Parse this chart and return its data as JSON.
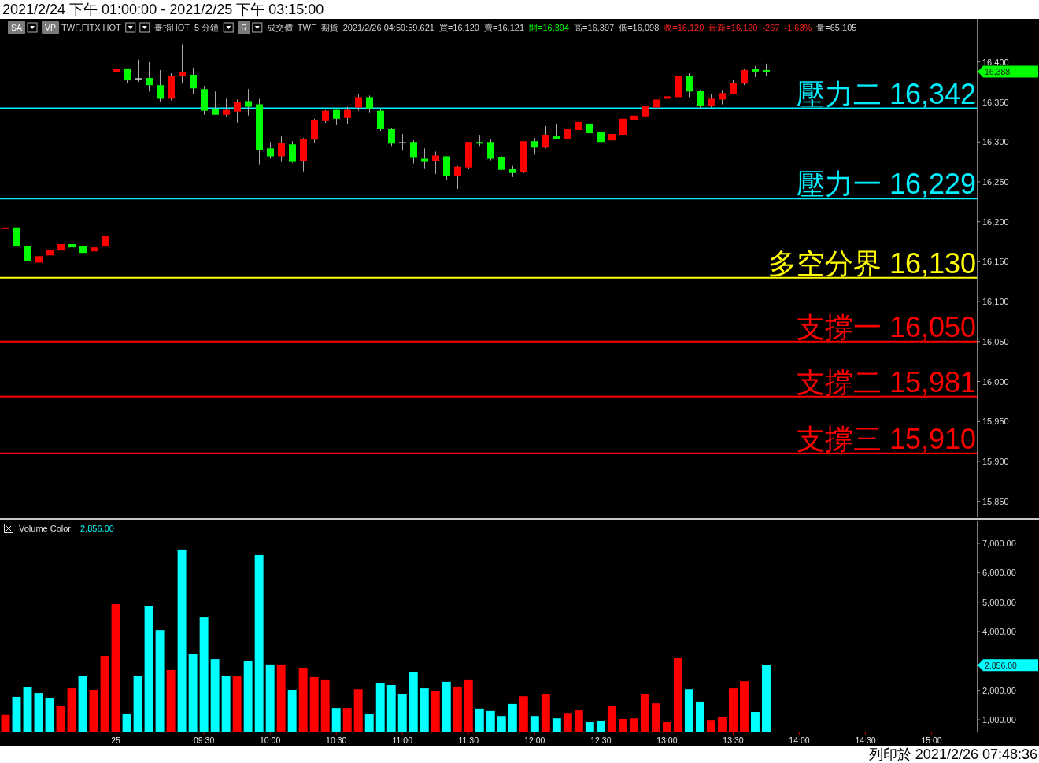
{
  "chart_data": [
    {
      "type": "candlestick",
      "title": "2021/2/24 下午 01:00:00 - 2021/2/25 下午 03:15:00",
      "categories": [
        null,
        null,
        null,
        null,
        null,
        null,
        null,
        null,
        null,
        null,
        null,
        null,
        null,
        null,
        null,
        null,
        null,
        null,
        null,
        null,
        null,
        null,
        null,
        null,
        null,
        null,
        null,
        null,
        null,
        null,
        null,
        null,
        null,
        null,
        null,
        null,
        null,
        null,
        null,
        null,
        null,
        null,
        null,
        null,
        null,
        null,
        null,
        null,
        null,
        null,
        null,
        null,
        null,
        null,
        null,
        null,
        null,
        null,
        null,
        null,
        null,
        null,
        null,
        null,
        null,
        null,
        null,
        null,
        null,
        null,
        null,
        null,
        null,
        null,
        null,
        null,
        null,
        null,
        null,
        null,
        null,
        null,
        null,
        null,
        null,
        null,
        null,
        null
      ],
      "ohlc": [
        [
          16191,
          16202,
          16171,
          16193
        ],
        [
          16193,
          16201,
          16165,
          16169
        ],
        [
          16170,
          16172,
          16146,
          16151
        ],
        [
          16149,
          16171,
          16141,
          16157
        ],
        [
          16158,
          16183,
          16151,
          16165
        ],
        [
          16164,
          16176,
          16157,
          16172
        ],
        [
          16172,
          16180,
          16147,
          16168
        ],
        [
          16170,
          16180,
          16156,
          16161
        ],
        [
          16163,
          16174,
          16155,
          16168
        ],
        [
          16169,
          16185,
          16161,
          16182
        ],
        [
          16387,
          16400,
          16373,
          16391
        ],
        [
          16392,
          16392,
          16374,
          16377
        ],
        [
          16379,
          16403,
          16375,
          16379
        ],
        [
          16380,
          16400,
          16363,
          16371
        ],
        [
          16371,
          16390,
          16350,
          16354
        ],
        [
          16354,
          16386,
          16352,
          16383
        ],
        [
          16382,
          16422,
          16373,
          16387
        ],
        [
          16384,
          16393,
          16360,
          16367
        ],
        [
          16366,
          16370,
          16334,
          16339
        ],
        [
          16341,
          16363,
          16334,
          16334
        ],
        [
          16334,
          16354,
          16332,
          16340
        ],
        [
          16338,
          16353,
          16324,
          16350
        ],
        [
          16351,
          16366,
          16333,
          16344
        ],
        [
          16347,
          16354,
          16272,
          16290
        ],
        [
          16292,
          16300,
          16279,
          16282
        ],
        [
          16282,
          16307,
          16275,
          16299
        ],
        [
          16297,
          16301,
          16274,
          16275
        ],
        [
          16276,
          16305,
          16263,
          16304
        ],
        [
          16303,
          16329,
          16299,
          16327
        ],
        [
          16326,
          16340,
          16324,
          16339
        ],
        [
          16340,
          16340,
          16321,
          16329
        ],
        [
          16330,
          16344,
          16322,
          16340
        ],
        [
          16343,
          16360,
          16339,
          16356
        ],
        [
          16356,
          16358,
          16337,
          16342
        ],
        [
          16339,
          16341,
          16313,
          16316
        ],
        [
          16316,
          16318,
          16294,
          16298
        ],
        [
          16299,
          16310,
          16289,
          16299
        ],
        [
          16300,
          16302,
          16273,
          16280
        ],
        [
          16279,
          16292,
          16267,
          16275
        ],
        [
          16276,
          16288,
          16260,
          16283
        ],
        [
          16282,
          16282,
          16253,
          16257
        ],
        [
          16257,
          16270,
          16241,
          16269
        ],
        [
          16268,
          16300,
          16266,
          16300
        ],
        [
          16300,
          16308,
          16294,
          16298
        ],
        [
          16300,
          16303,
          16277,
          16279
        ],
        [
          16281,
          16282,
          16265,
          16265
        ],
        [
          16266,
          16270,
          16256,
          16261
        ],
        [
          16262,
          16301,
          16261,
          16301
        ],
        [
          16301,
          16305,
          16284,
          16293
        ],
        [
          16293,
          16320,
          16292,
          16309
        ],
        [
          16307,
          16323,
          16304,
          16304
        ],
        [
          16304,
          16320,
          16290,
          16316
        ],
        [
          16315,
          16328,
          16311,
          16325
        ],
        [
          16323,
          16325,
          16306,
          16311
        ],
        [
          16312,
          16326,
          16300,
          16300
        ],
        [
          16302,
          16323,
          16292,
          16310
        ],
        [
          16309,
          16330,
          16308,
          16329
        ],
        [
          16327,
          16334,
          16321,
          16333
        ],
        [
          16332,
          16349,
          16332,
          16345
        ],
        [
          16343,
          16358,
          16343,
          16353
        ],
        [
          16354,
          16359,
          16352,
          16357
        ],
        [
          16356,
          16383,
          16354,
          16382
        ],
        [
          16382,
          16386,
          16356,
          16363
        ],
        [
          16364,
          16365,
          16343,
          16345
        ],
        [
          16345,
          16360,
          16343,
          16354
        ],
        [
          16353,
          16365,
          16347,
          16361
        ],
        [
          16360,
          16377,
          16360,
          16374
        ],
        [
          16373,
          16391,
          16371,
          16390
        ],
        [
          16391,
          16395,
          16381,
          16388
        ],
        [
          16390,
          16398,
          16382,
          16388
        ],
        null,
        null,
        null,
        null,
        null,
        null,
        null,
        null,
        null,
        null,
        null,
        null,
        null,
        null,
        null,
        null,
        null,
        null
      ],
      "colors": [
        "#ff0000",
        "#00ff00",
        "#00ff00",
        "#ff0000",
        "#ff0000",
        "#ff0000",
        "#00ff00",
        "#00ff00",
        "#ff0000",
        "#ff0000",
        "#ff0000",
        "#00ff00",
        "#c0c0c0",
        "#00ff00",
        "#00ff00",
        "#ff0000",
        "#ff0000",
        "#00ff00",
        "#00ff00",
        "#00ff00",
        "#ff0000",
        "#ff0000",
        "#00ff00",
        "#00ff00",
        "#00ff00",
        "#ff0000",
        "#00ff00",
        "#ff0000",
        "#ff0000",
        "#ff0000",
        "#00ff00",
        "#ff0000",
        "#ff0000",
        "#00ff00",
        "#00ff00",
        "#00ff00",
        "#c0c0c0",
        "#00ff00",
        "#00ff00",
        "#ff0000",
        "#00ff00",
        "#ff0000",
        "#ff0000",
        "#00ff00",
        "#00ff00",
        "#00ff00",
        "#00ff00",
        "#ff0000",
        "#00ff00",
        "#ff0000",
        "#00ff00",
        "#ff0000",
        "#ff0000",
        "#00ff00",
        "#00ff00",
        "#ff0000",
        "#ff0000",
        "#ff0000",
        "#ff0000",
        "#ff0000",
        "#ff0000",
        "#ff0000",
        "#00ff00",
        "#00ff00",
        "#ff0000",
        "#ff0000",
        "#ff0000",
        "#ff0000",
        "#00ff00",
        "#00ff00",
        null,
        null,
        null,
        null,
        null,
        null,
        null,
        null,
        null,
        null,
        null,
        null,
        null,
        null,
        null,
        null,
        null,
        null
      ],
      "ylim": [
        15830,
        16454
      ],
      "yticks": [
        {
          "value": 15850,
          "label": "15,850"
        },
        {
          "value": 15900,
          "label": "15,900"
        },
        {
          "value": 15950,
          "label": "15,950"
        },
        {
          "value": 16000,
          "label": "16,000"
        },
        {
          "value": 16050,
          "label": "16,050"
        },
        {
          "value": 16100,
          "label": "16,100"
        },
        {
          "value": 16150,
          "label": "16,150"
        },
        {
          "value": 16200,
          "label": "16,200"
        },
        {
          "value": 16250,
          "label": "16,250"
        },
        {
          "value": 16300,
          "label": "16,300"
        },
        {
          "value": 16350,
          "label": "16,350"
        },
        {
          "value": 16400,
          "label": "16,400"
        }
      ],
      "ref_lines": [
        {
          "axis": "y",
          "value": 16342,
          "label": "壓力二 16,342",
          "color": "#00f0ff"
        },
        {
          "axis": "y",
          "value": 16229,
          "label": "壓力一 16,229",
          "color": "#00f0ff"
        },
        {
          "axis": "y",
          "value": 16130,
          "label": "多空分界 16,130",
          "color": "#ffff00"
        },
        {
          "axis": "y",
          "value": 16050,
          "label": "支撐一 16,050",
          "color": "#ff0000"
        },
        {
          "axis": "y",
          "value": 15981,
          "label": "支撐二 15,981",
          "color": "#ff0000"
        },
        {
          "axis": "y",
          "value": 15910,
          "label": "支撐三 15,910",
          "color": "#ff0000"
        }
      ],
      "annotations": [
        "SA",
        "VP",
        "TWF.FITX HOT",
        "臺指HOT",
        "5 分鐘",
        "R",
        "成交價",
        "TWF",
        "期貨",
        "2021/2/26 04:59:59.621",
        "買=16,120",
        "賣=16,121",
        "開=16,394",
        "高=16,397",
        "低=16,098",
        "收=16,120",
        "最新=16,120",
        "-267",
        "-1.63%",
        "量=65,105",
        "16,388"
      ],
      "tick_labels": "y"
    },
    {
      "type": "bar",
      "title": "Volume Color",
      "categories": [
        null,
        null,
        null,
        null,
        null,
        null,
        null,
        null,
        null,
        null,
        "25",
        null,
        null,
        null,
        null,
        null,
        null,
        null,
        "09:30",
        null,
        null,
        null,
        null,
        null,
        "10:00",
        null,
        null,
        null,
        null,
        null,
        "10:30",
        null,
        null,
        null,
        null,
        null,
        "11:00",
        null,
        null,
        null,
        null,
        null,
        "11:30",
        null,
        null,
        null,
        null,
        null,
        "12:00",
        null,
        null,
        null,
        null,
        null,
        "12:30",
        null,
        null,
        null,
        null,
        null,
        "13:00",
        null,
        null,
        null,
        null,
        null,
        "13:30",
        null,
        null,
        null,
        null,
        null,
        "14:00",
        null,
        null,
        null,
        null,
        null,
        "14:30",
        null,
        null,
        null,
        null,
        null,
        "15:00",
        null,
        null,
        null
      ],
      "values": [
        1170,
        1780,
        2100,
        1910,
        1750,
        1460,
        2070,
        2500,
        2020,
        3170,
        4940,
        1190,
        2500,
        4880,
        4050,
        2690,
        6790,
        3250,
        4480,
        3060,
        2500,
        2470,
        3010,
        6600,
        2880,
        2880,
        2020,
        2770,
        2450,
        2370,
        1400,
        1400,
        2040,
        1190,
        2260,
        2180,
        1880,
        2610,
        2070,
        1990,
        2290,
        2130,
        2370,
        1380,
        1300,
        1130,
        1540,
        1800,
        1130,
        1860,
        1050,
        1210,
        1320,
        920,
        950,
        1460,
        1030,
        1050,
        1880,
        1560,
        920,
        3090,
        2040,
        1620,
        970,
        1110,
        2070,
        2310,
        1270,
        2856,
        null,
        null,
        null,
        null,
        null,
        null,
        null,
        null,
        null,
        null,
        null,
        null,
        null,
        null,
        null,
        null,
        null,
        null
      ],
      "colors": [
        "#ff0000",
        "#00ffff",
        "#00ffff",
        "#00ffff",
        "#00ffff",
        "#ff0000",
        "#ff0000",
        "#00ffff",
        "#ff0000",
        "#ff0000",
        "#ff0000",
        "#00ffff",
        "#00ffff",
        "#00ffff",
        "#00ffff",
        "#ff0000",
        "#00ffff",
        "#00ffff",
        "#00ffff",
        "#00ffff",
        "#00ffff",
        "#ff0000",
        "#00ffff",
        "#00ffff",
        "#00ffff",
        "#ff0000",
        "#00ffff",
        "#ff0000",
        "#ff0000",
        "#ff0000",
        "#00ffff",
        "#ff0000",
        "#ff0000",
        "#00ffff",
        "#00ffff",
        "#00ffff",
        "#00ffff",
        "#00ffff",
        "#00ffff",
        "#ff0000",
        "#00ffff",
        "#ff0000",
        "#ff0000",
        "#00ffff",
        "#00ffff",
        "#00ffff",
        "#00ffff",
        "#ff0000",
        "#00ffff",
        "#ff0000",
        "#00ffff",
        "#ff0000",
        "#ff0000",
        "#00ffff",
        "#00ffff",
        "#ff0000",
        "#ff0000",
        "#ff0000",
        "#ff0000",
        "#ff0000",
        "#ff0000",
        "#ff0000",
        "#00ffff",
        "#00ffff",
        "#ff0000",
        "#ff0000",
        "#ff0000",
        "#ff0000",
        "#00ffff",
        "#00ffff",
        null,
        null,
        null,
        null,
        null,
        null,
        null,
        null,
        null,
        null,
        null,
        null,
        null,
        null,
        null,
        null,
        null,
        null
      ],
      "ylim": [
        600,
        7750
      ],
      "yticks": [
        {
          "value": 1000,
          "label": "1,000.00"
        },
        {
          "value": 2000,
          "label": "2,000.00"
        },
        {
          "value": 3000,
          "label": null
        },
        {
          "value": 4000,
          "label": "4,000.00"
        },
        {
          "value": 5000,
          "label": "5,000.00"
        },
        {
          "value": 6000,
          "label": "6,000.00"
        },
        {
          "value": 7000,
          "label": "7,000.00"
        }
      ],
      "ref_lines": [
        {
          "axis": "x",
          "value": "25",
          "color": "#808080",
          "line_style": "dashed"
        }
      ],
      "annotations": [
        "2,856.00",
        "2,856.00",
        "列印於 2021/2/26 07:48:36"
      ]
    }
  ]
}
